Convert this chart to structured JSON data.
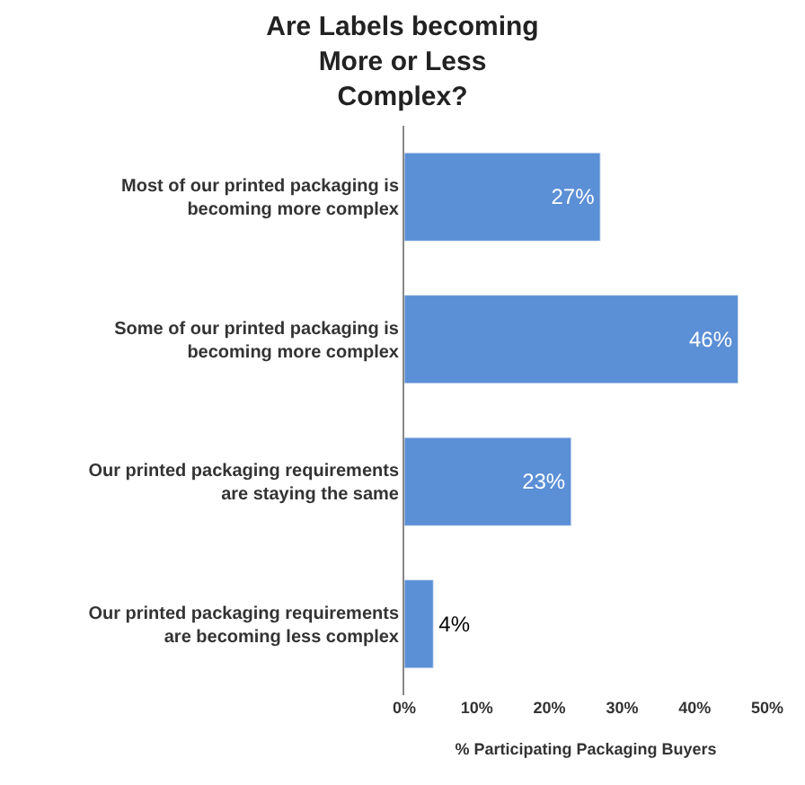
{
  "chart_data": {
    "type": "bar",
    "orientation": "horizontal",
    "title": "Are Labels becoming More or Less Complex?",
    "xlabel": "% Participating Packaging Buyers",
    "categories": [
      "Most of our printed packaging is becoming more complex",
      "Some of our printed packaging is becoming more complex",
      "Our printed packaging requirements are staying the same",
      "Our printed packaging requirements are becoming less complex"
    ],
    "values": [
      27,
      46,
      23,
      4
    ],
    "value_labels": [
      "27%",
      "46%",
      "23%",
      "4%"
    ],
    "color": "#5b8fd6",
    "xlim": [
      0,
      50
    ],
    "xticks": [
      {
        "value": 0,
        "label": "0%"
      },
      {
        "value": 10,
        "label": "10%"
      },
      {
        "value": 20,
        "label": "20%"
      },
      {
        "value": 30,
        "label": "30%"
      },
      {
        "value": 40,
        "label": "40%"
      },
      {
        "value": 50,
        "label": "50%"
      }
    ],
    "legend": false
  }
}
